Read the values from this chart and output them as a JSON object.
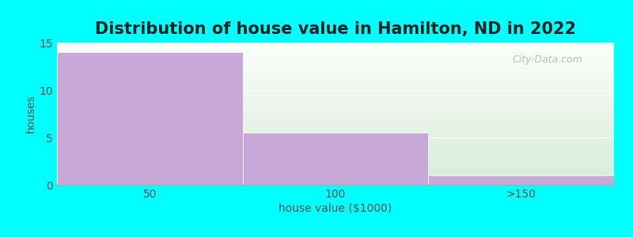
{
  "title": "Distribution of house value in Hamilton, ND in 2022",
  "xlabel": "house value ($1000)",
  "ylabel": "houses",
  "categories": [
    "50",
    "100",
    ">150"
  ],
  "values": [
    14,
    5.5,
    1
  ],
  "bar_color": "#c8a8d8",
  "background_color": "#00ffff",
  "plot_bg_top": "#f8fff8",
  "plot_bg_bottom": "#d8ecd8",
  "ylim": [
    0,
    15
  ],
  "yticks": [
    0,
    5,
    10,
    15
  ],
  "title_fontsize": 15,
  "label_fontsize": 10,
  "tick_fontsize": 10,
  "bar_edges": [
    0,
    1,
    2,
    3
  ],
  "watermark_text": "City-Data.com",
  "grid_color": "#e8e8e8"
}
